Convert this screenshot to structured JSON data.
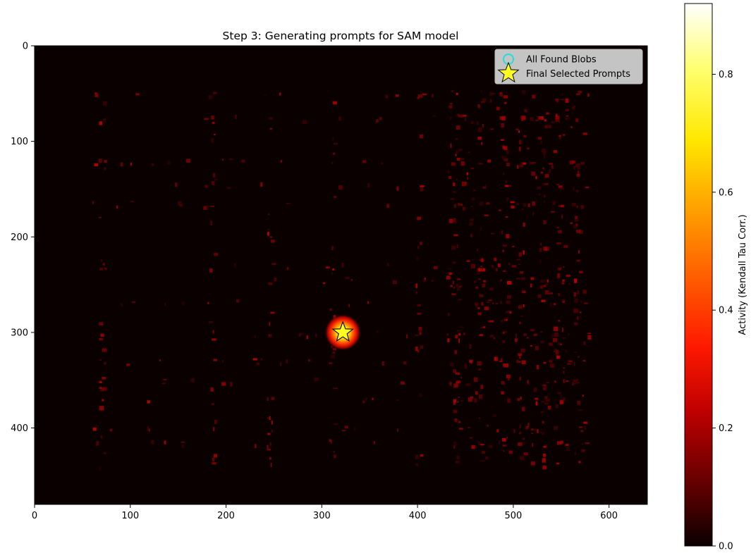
{
  "chart_data": {
    "type": "heatmap",
    "title": "Step 3: Generating prompts for SAM model",
    "xlabel": "",
    "ylabel": "",
    "xlim": [
      0,
      640
    ],
    "ylim": [
      480,
      0
    ],
    "x_ticks": [
      0,
      100,
      200,
      300,
      400,
      500,
      600
    ],
    "y_ticks": [
      0,
      100,
      200,
      300,
      400
    ],
    "grid": false,
    "colormap": "hot",
    "colorbar": {
      "label": "Activity (Kendall Tau Corr.)",
      "range": [
        0.0,
        0.92
      ],
      "ticks": [
        "0.0",
        "0.2",
        "0.4",
        "0.6",
        "0.8"
      ]
    },
    "legend": {
      "placement": "top-right",
      "entries": [
        {
          "label": "All Found Blobs",
          "marker": "hollow-circle",
          "color": "#22dddd"
        },
        {
          "label": "Final Selected Prompts",
          "marker": "star",
          "color": "#ffff22"
        }
      ]
    },
    "hotspot": {
      "x": 322,
      "y": 300,
      "value": 0.92
    },
    "selected_prompts": [
      {
        "x": 322,
        "y": 300
      }
    ],
    "noise_columns": [
      70,
      185,
      245,
      310,
      400,
      440,
      465,
      490,
      508,
      530,
      545,
      565
    ],
    "noise_rows": [
      50,
      75,
      120,
      145,
      165,
      230,
      245,
      268,
      300,
      330,
      350,
      370,
      400,
      415
    ]
  }
}
